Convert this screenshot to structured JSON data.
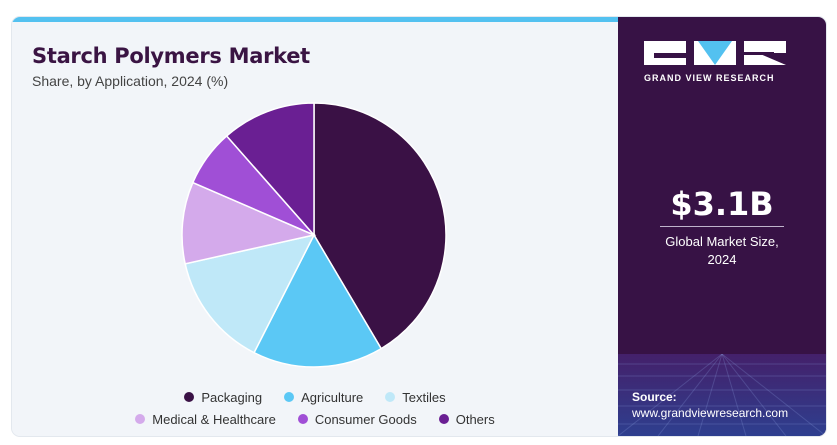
{
  "header": {
    "title": "Starch Polymers Market",
    "subtitle": "Share, by Application, 2024 (%)"
  },
  "chart_data": {
    "type": "pie",
    "title": "Starch Polymers Market",
    "subtitle": "Share, by Application, 2024 (%)",
    "legend_position": "bottom",
    "slices": [
      {
        "label": "Packaging",
        "value": 41.5,
        "color": "#3a1145"
      },
      {
        "label": "Agriculture",
        "value": 16.0,
        "color": "#5bc8f5"
      },
      {
        "label": "Textiles",
        "value": 14.0,
        "color": "#bfe8f8"
      },
      {
        "label": "Medical & Healthcare",
        "value": 10.0,
        "color": "#d4aaeb"
      },
      {
        "label": "Consumer Goods",
        "value": 7.0,
        "color": "#a04fd6"
      },
      {
        "label": "Others",
        "value": 11.5,
        "color": "#6a1f93"
      }
    ]
  },
  "brand": {
    "name": "GRAND VIEW RESEARCH"
  },
  "stat": {
    "value": "$3.1B",
    "label_line1": "Global Market Size,",
    "label_line2": "2024"
  },
  "source": {
    "label": "Source:",
    "url": "www.grandviewresearch.com"
  }
}
